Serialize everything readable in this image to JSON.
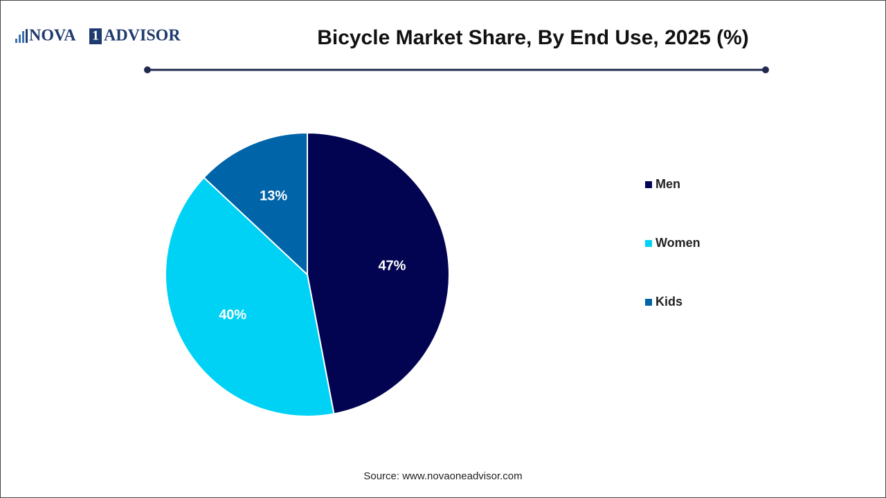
{
  "logo": {
    "name_start": "NOVA",
    "badge": "1",
    "name_end": "ADVISOR"
  },
  "chart_data": {
    "type": "pie",
    "title": "Bicycle Market Share, By End Use, 2025 (%)",
    "categories": [
      "Men",
      "Women",
      "Kids"
    ],
    "values": [
      47,
      40,
      13
    ],
    "value_labels": [
      "47%",
      "40%",
      "13%"
    ],
    "colors": [
      "#020452",
      "#00d2f5",
      "#0064a8"
    ],
    "legend": "right"
  },
  "source": "Source: www.novaoneadvisor.com"
}
